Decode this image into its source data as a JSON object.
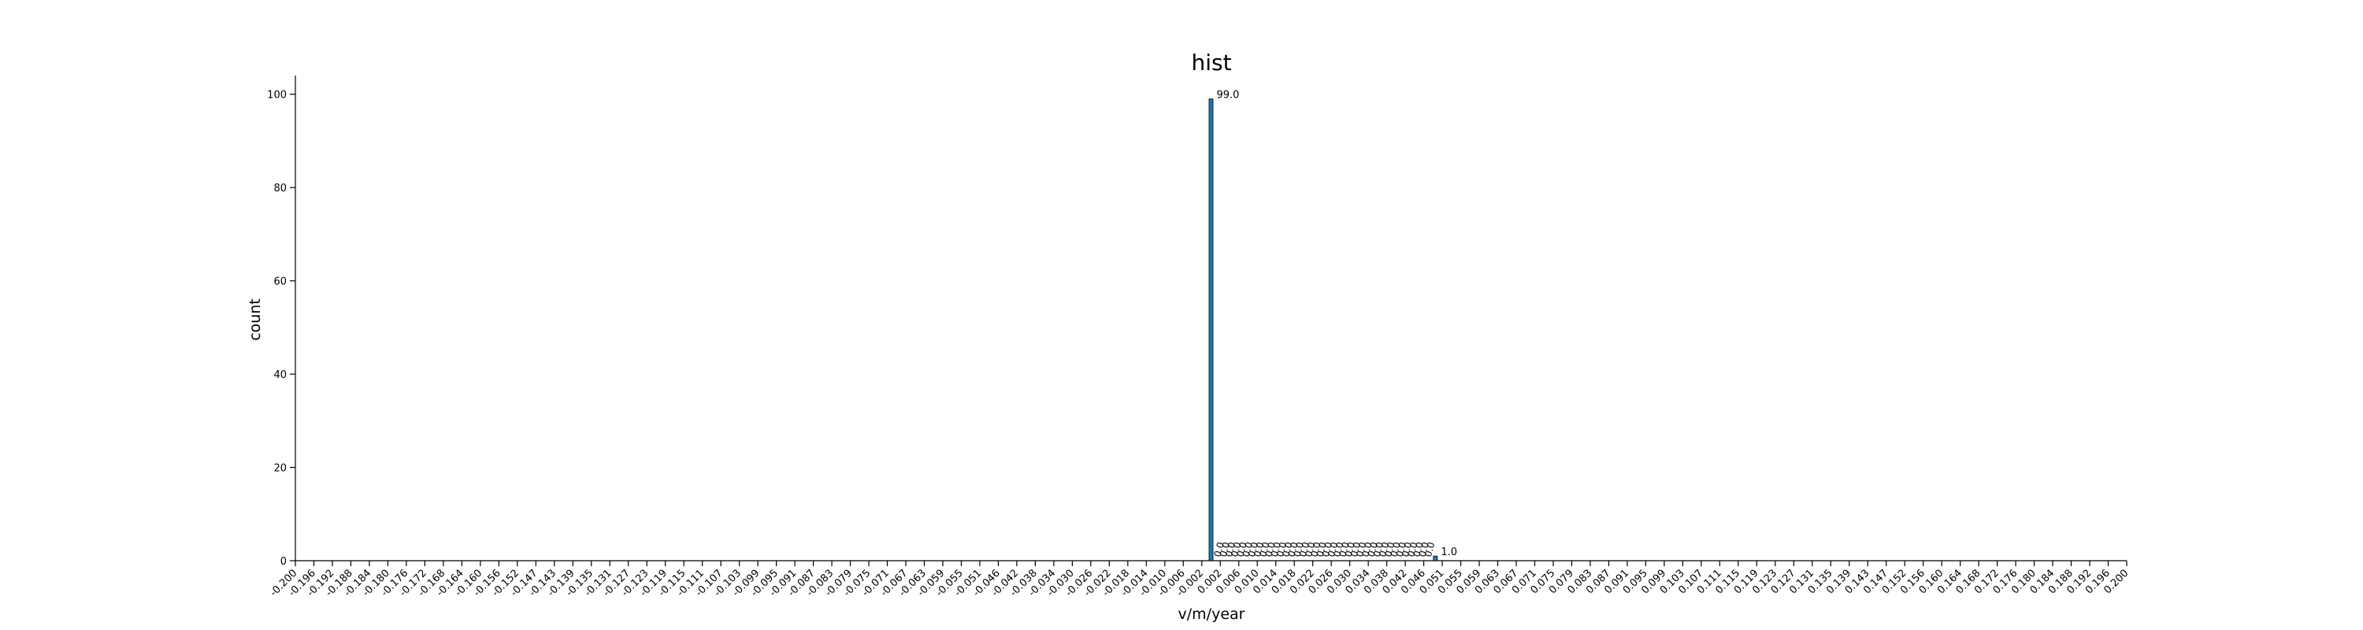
{
  "chart_data": {
    "type": "bar",
    "title": "hist",
    "xlabel": "v/m/year",
    "ylabel": "count",
    "xlim": [
      -0.2,
      0.2
    ],
    "ylim": [
      0,
      104
    ],
    "yticks": [
      0,
      20,
      40,
      60,
      80,
      100
    ],
    "xtick_labels": [
      "-0.200",
      "-0.196",
      "-0.192",
      "-0.188",
      "-0.184",
      "-0.180",
      "-0.176",
      "-0.172",
      "-0.168",
      "-0.164",
      "-0.160",
      "-0.156",
      "-0.152",
      "-0.147",
      "-0.143",
      "-0.139",
      "-0.135",
      "-0.131",
      "-0.127",
      "-0.123",
      "-0.119",
      "-0.115",
      "-0.111",
      "-0.107",
      "-0.103",
      "-0.099",
      "-0.095",
      "-0.091",
      "-0.087",
      "-0.083",
      "-0.079",
      "-0.075",
      "-0.071",
      "-0.067",
      "-0.063",
      "-0.059",
      "-0.055",
      "-0.051",
      "-0.046",
      "-0.042",
      "-0.038",
      "-0.034",
      "-0.030",
      "-0.026",
      "-0.022",
      "-0.018",
      "-0.014",
      "-0.010",
      "-0.006",
      "-0.002",
      "0.002",
      "0.006",
      "0.010",
      "0.014",
      "0.018",
      "0.022",
      "0.026",
      "0.030",
      "0.034",
      "0.038",
      "0.042",
      "0.046",
      "0.051",
      "0.055",
      "0.059",
      "0.063",
      "0.067",
      "0.071",
      "0.075",
      "0.079",
      "0.083",
      "0.087",
      "0.091",
      "0.095",
      "0.099",
      "0.103",
      "0.107",
      "0.111",
      "0.115",
      "0.119",
      "0.123",
      "0.127",
      "0.131",
      "0.135",
      "0.139",
      "0.143",
      "0.147",
      "0.152",
      "0.156",
      "0.160",
      "0.164",
      "0.168",
      "0.172",
      "0.176",
      "0.180",
      "0.184",
      "0.188",
      "0.192",
      "0.196",
      "0.200"
    ],
    "bars": [
      {
        "x": 0.0,
        "value": 99,
        "label": "99.0"
      },
      {
        "x": 0.049,
        "value": 1,
        "label": "1.0"
      }
    ],
    "tiny_label_range": [
      0.002,
      0.048
    ],
    "tiny_label_count": 38,
    "tiny_label_text": "0.0",
    "bar_color": "#1f77b4",
    "grid": false
  }
}
